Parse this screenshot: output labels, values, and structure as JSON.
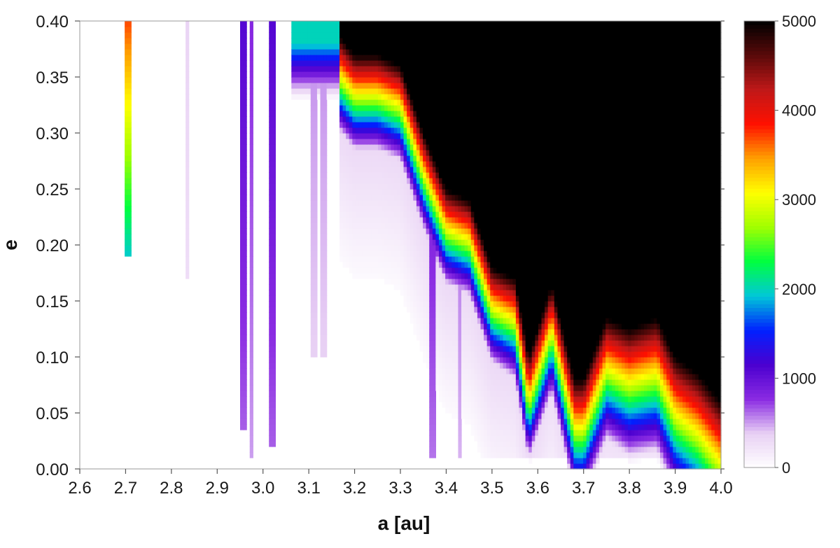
{
  "chart_data": {
    "type": "heatmap",
    "title": "",
    "xlabel": "a [au]",
    "ylabel": "e",
    "xlim": [
      2.6,
      4.0
    ],
    "ylim": [
      0.0,
      0.4
    ],
    "x_ticks": [
      "2.6",
      "2.7",
      "2.8",
      "2.9",
      "3.0",
      "3.1",
      "3.2",
      "3.3",
      "3.4",
      "3.5",
      "3.6",
      "3.7",
      "3.8",
      "3.9",
      "4.0"
    ],
    "y_ticks": [
      "0.00",
      "0.05",
      "0.10",
      "0.15",
      "0.20",
      "0.25",
      "0.30",
      "0.35",
      "0.40"
    ],
    "colorbar": {
      "range": [
        0,
        5000
      ],
      "ticks": [
        "0",
        "1000",
        "2000",
        "3000",
        "4000",
        "5000"
      ],
      "colors": [
        "#ffffff",
        "#e8d0f4",
        "#8a2be2",
        "#4b00d0",
        "#0020ff",
        "#00c8d8",
        "#00ff40",
        "#a0ff00",
        "#ffff00",
        "#ffa000",
        "#ff1000",
        "#c01818",
        "#5a0a0a",
        "#000000"
      ]
    },
    "boundary_e_at_a": {
      "a": [
        3.17,
        3.2,
        3.25,
        3.3,
        3.35,
        3.38,
        3.4,
        3.45,
        3.5,
        3.55,
        3.58,
        3.63,
        3.68,
        3.7,
        3.75,
        3.8,
        3.86,
        3.9,
        3.95,
        4.0
      ],
      "e": [
        0.385,
        0.37,
        0.37,
        0.36,
        0.3,
        0.27,
        0.25,
        0.24,
        0.18,
        0.17,
        0.1,
        0.165,
        0.08,
        0.08,
        0.135,
        0.125,
        0.135,
        0.1,
        0.085,
        0.06
      ]
    },
    "resonance_columns": [
      {
        "a": 2.705,
        "e_min": 0.19,
        "intensity": 3500
      },
      {
        "a": 2.835,
        "e_min": 0.17,
        "intensity": 150
      },
      {
        "a": 2.955,
        "e_min": 0.035,
        "intensity": 900
      },
      {
        "a": 2.975,
        "e_min": 0.01,
        "intensity": 600
      },
      {
        "a": 3.02,
        "e_min": 0.02,
        "intensity": 900
      },
      {
        "a": 3.11,
        "e_min": 0.1,
        "intensity": 350
      },
      {
        "a": 3.13,
        "e_min": 0.1,
        "intensity": 350
      },
      {
        "a": 3.37,
        "e_min": 0.01,
        "intensity": 800
      },
      {
        "a": 3.43,
        "e_min": 0.01,
        "intensity": 500
      }
    ]
  }
}
